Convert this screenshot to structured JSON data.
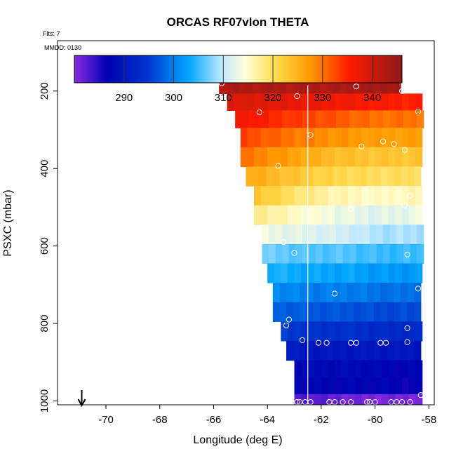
{
  "chart_data": {
    "type": "heatmap",
    "title": "ORCAS RF07vlon THETA",
    "flight_note": "Flts: 7",
    "date_note": "MMDD: 0130",
    "xlabel": "Longitude (deg E)",
    "ylabel": "PSXC (mbar)",
    "xlim": [
      -71.8,
      -57.8
    ],
    "ylim": [
      1010,
      70
    ],
    "x_ticks": [
      -70,
      -68,
      -66,
      -64,
      -62,
      -60,
      -58
    ],
    "y_ticks": [
      200,
      400,
      600,
      800,
      1000
    ],
    "colorbar": {
      "min": 280,
      "max": 346,
      "ticks": [
        290,
        300,
        310,
        320,
        330,
        340
      ],
      "label_ticks": [
        "290",
        "300",
        "310",
        "320",
        "330",
        "340"
      ]
    },
    "vertical_line_lon": -62.5,
    "arrow_lon": -70.9,
    "cell_width_deg": 0.25,
    "rows": [
      {
        "p": 183,
        "lon_start": -65.8,
        "lon_end": -59.0,
        "theta": [
          343,
          343,
          343,
          344
        ]
      },
      {
        "p": 230,
        "lon_start": -65.5,
        "lon_end": -58.2,
        "theta": [
          339,
          338,
          337,
          336,
          335
        ]
      },
      {
        "p": 270,
        "lon_start": -65.2,
        "lon_end": -58.2,
        "theta": [
          337,
          334,
          332,
          330,
          330
        ]
      },
      {
        "p": 320,
        "lon_start": -65.0,
        "lon_end": -58.2,
        "theta": [
          333,
          330,
          328,
          327,
          327
        ]
      },
      {
        "p": 370,
        "lon_start": -65.0,
        "lon_end": -58.2,
        "theta": [
          330,
          327,
          324,
          323,
          323
        ]
      },
      {
        "p": 420,
        "lon_start": -64.8,
        "lon_end": -58.2,
        "theta": [
          326,
          323,
          321,
          320,
          320
        ]
      },
      {
        "p": 470,
        "lon_start": -64.5,
        "lon_end": -58.2,
        "theta": [
          323,
          319,
          316,
          315,
          316
        ]
      },
      {
        "p": 520,
        "lon_start": -64.5,
        "lon_end": -58.2,
        "theta": [
          318,
          315,
          313,
          312,
          313
        ]
      },
      {
        "p": 570,
        "lon_start": -64.2,
        "lon_end": -58.2,
        "theta": [
          313,
          312,
          311,
          309,
          309
        ]
      },
      {
        "p": 620,
        "lon_start": -64.2,
        "lon_end": -58.2,
        "theta": [
          307,
          306,
          306,
          305,
          305
        ]
      },
      {
        "p": 670,
        "lon_start": -64.0,
        "lon_end": -58.2,
        "theta": [
          304,
          303,
          303,
          302,
          302
        ]
      },
      {
        "p": 720,
        "lon_start": -63.8,
        "lon_end": -58.2,
        "theta": [
          301,
          300,
          300,
          299,
          299
        ]
      },
      {
        "p": 770,
        "lon_start": -63.8,
        "lon_end": -58.2,
        "theta": [
          298,
          297,
          297,
          296,
          296
        ]
      },
      {
        "p": 820,
        "lon_start": -63.5,
        "lon_end": -58.2,
        "theta": [
          295,
          294,
          294,
          293,
          293
        ]
      },
      {
        "p": 870,
        "lon_start": -63.3,
        "lon_end": -58.2,
        "theta": [
          291,
          290,
          290,
          290,
          290
        ]
      },
      {
        "p": 920,
        "lon_start": -63.0,
        "lon_end": -58.2,
        "theta": [
          288,
          288,
          288,
          287,
          287
        ]
      },
      {
        "p": 960,
        "lon_start": -63.0,
        "lon_end": -58.2,
        "theta": [
          287,
          287,
          287,
          287,
          286
        ]
      },
      {
        "p": 1005,
        "lon_start": -63.0,
        "lon_end": -58.2,
        "theta": [
          283,
          282,
          281,
          281,
          281
        ]
      }
    ],
    "points": [
      {
        "lon": -65.7,
        "p": 180
      },
      {
        "lon": -62.9,
        "p": 213
      },
      {
        "lon": -60.7,
        "p": 188
      },
      {
        "lon": -59.0,
        "p": 200
      },
      {
        "lon": -64.3,
        "p": 255
      },
      {
        "lon": -58.4,
        "p": 253
      },
      {
        "lon": -62.4,
        "p": 313
      },
      {
        "lon": -60.5,
        "p": 343
      },
      {
        "lon": -59.7,
        "p": 330
      },
      {
        "lon": -59.3,
        "p": 337
      },
      {
        "lon": -58.9,
        "p": 352
      },
      {
        "lon": -63.6,
        "p": 393
      },
      {
        "lon": -58.7,
        "p": 470
      },
      {
        "lon": -58.9,
        "p": 495
      },
      {
        "lon": -60.9,
        "p": 505
      },
      {
        "lon": -63.4,
        "p": 590
      },
      {
        "lon": -63.0,
        "p": 618
      },
      {
        "lon": -58.8,
        "p": 622
      },
      {
        "lon": -58.4,
        "p": 710
      },
      {
        "lon": -61.5,
        "p": 723
      },
      {
        "lon": -63.2,
        "p": 790
      },
      {
        "lon": -63.3,
        "p": 805
      },
      {
        "lon": -58.8,
        "p": 812
      },
      {
        "lon": -62.7,
        "p": 843
      },
      {
        "lon": -62.1,
        "p": 850
      },
      {
        "lon": -61.8,
        "p": 850
      },
      {
        "lon": -60.9,
        "p": 850
      },
      {
        "lon": -60.7,
        "p": 850
      },
      {
        "lon": -59.8,
        "p": 850
      },
      {
        "lon": -59.6,
        "p": 850
      },
      {
        "lon": -58.8,
        "p": 848
      },
      {
        "lon": -58.3,
        "p": 985
      },
      {
        "lon": -58.1,
        "p": 980
      },
      {
        "lon": -62.9,
        "p": 1003
      },
      {
        "lon": -62.8,
        "p": 1003
      },
      {
        "lon": -62.6,
        "p": 1003
      },
      {
        "lon": -62.4,
        "p": 1003
      },
      {
        "lon": -61.7,
        "p": 1003
      },
      {
        "lon": -61.5,
        "p": 1003
      },
      {
        "lon": -61.2,
        "p": 1003
      },
      {
        "lon": -60.9,
        "p": 1003
      },
      {
        "lon": -60.3,
        "p": 1003
      },
      {
        "lon": -60.2,
        "p": 1003
      },
      {
        "lon": -60.0,
        "p": 1003
      },
      {
        "lon": -59.4,
        "p": 1003
      },
      {
        "lon": -59.2,
        "p": 1003
      },
      {
        "lon": -59.0,
        "p": 1003
      },
      {
        "lon": -58.7,
        "p": 1003
      },
      {
        "lon": -61.7,
        "p": 1003
      }
    ]
  }
}
